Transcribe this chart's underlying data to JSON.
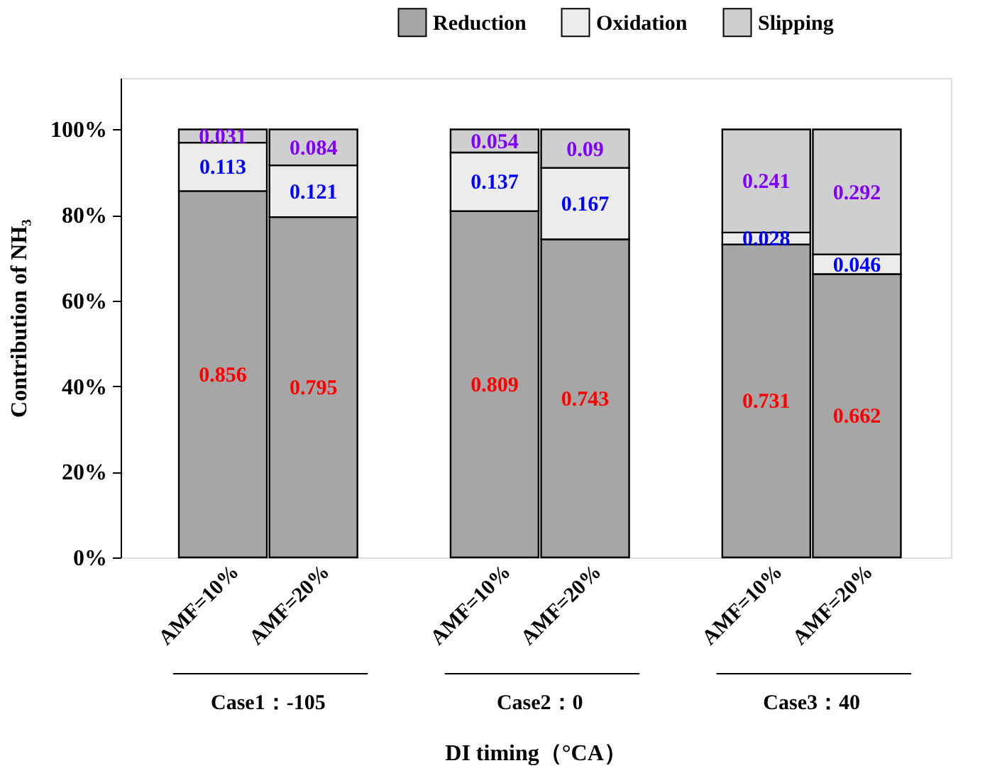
{
  "chart_data": {
    "type": "bar",
    "stacked": true,
    "categories": [
      "AMF=10%",
      "AMF=20%",
      null,
      "AMF=10%",
      "AMF=20%",
      null,
      "AMF=10%",
      "AMF=20%"
    ],
    "series": [
      {
        "name": "Reduction",
        "color": "#a6a6a6",
        "values": [
          0.856,
          0.795,
          null,
          0.809,
          0.743,
          null,
          0.731,
          0.662
        ]
      },
      {
        "name": "Oxidation",
        "color": "#ececec",
        "values": [
          0.113,
          0.121,
          null,
          0.137,
          0.167,
          null,
          0.028,
          0.046
        ]
      },
      {
        "name": "Slipping",
        "color": "#cfcfcf",
        "values": [
          0.031,
          0.084,
          null,
          0.054,
          0.09,
          null,
          0.241,
          0.292
        ]
      }
    ],
    "data_labels": true,
    "ylabel": "Contribution of NH₃",
    "xlabel": "DI timing（°CA）",
    "annotations": [
      "Case1：-105",
      "Case2：0",
      "Case3：40"
    ],
    "ylim": [
      0,
      1.12
    ],
    "yticks": [
      {
        "value": 0,
        "label": "0%"
      },
      {
        "value": 0.2,
        "label": "20%"
      },
      {
        "value": 0.4,
        "label": "40%"
      },
      {
        "value": 0.6,
        "label": "60%"
      },
      {
        "value": 0.8,
        "label": "80%"
      },
      {
        "value": 1.0,
        "label": "100%"
      }
    ],
    "grid": false,
    "legend": "top right"
  }
}
